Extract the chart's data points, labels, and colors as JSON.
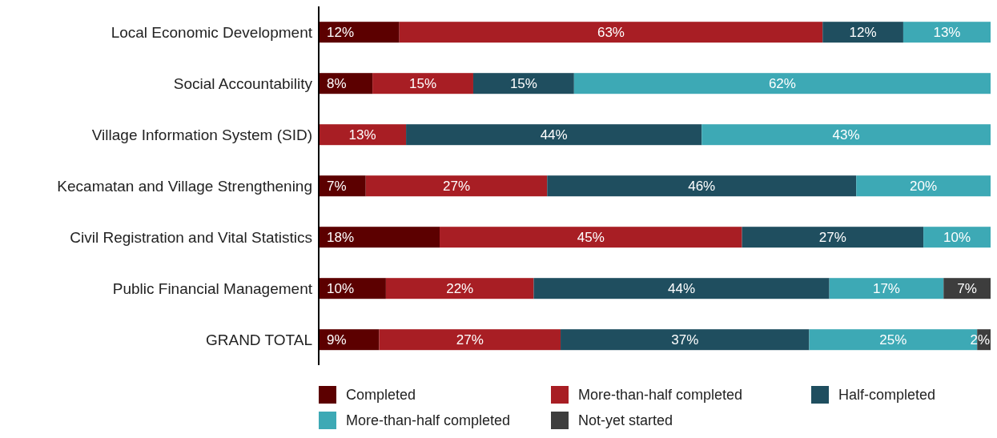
{
  "chart_data": {
    "type": "bar",
    "orientation": "horizontal",
    "stacked": true,
    "categories": [
      "Local Economic Development",
      "Social Accountability",
      "Village Information System (SID)",
      "Kecamatan and Village Strengthening",
      "Civil Registration and Vital Statistics",
      "Public Financial Management",
      "GRAND TOTAL"
    ],
    "series": [
      {
        "name": "Completed",
        "color": "#5c0000",
        "values": [
          12,
          8,
          null,
          7,
          18,
          10,
          9
        ],
        "value_labels": [
          "12%",
          "8%",
          null,
          "7%",
          "18%",
          "10%",
          "9%"
        ]
      },
      {
        "name": "More-than-half completed",
        "color": "#a81e24",
        "values": [
          63,
          15,
          13,
          27,
          45,
          22,
          27
        ],
        "value_labels": [
          "63%",
          "15%",
          "13%",
          "27%",
          "45%",
          "22%",
          "27%"
        ]
      },
      {
        "name": "Half-completed",
        "color": "#1f4e5f",
        "values": [
          12,
          15,
          44,
          46,
          27,
          44,
          37
        ],
        "value_labels": [
          "12%",
          "15%",
          "44%",
          "46%",
          "27%",
          "44%",
          "37%"
        ]
      },
      {
        "name": "More-than-half completed",
        "color": "#3da9b5",
        "values": [
          13,
          62,
          43,
          20,
          10,
          17,
          25
        ],
        "value_labels": [
          "13%",
          "62%",
          "43%",
          "20%",
          "10%",
          "17%",
          "25%"
        ]
      },
      {
        "name": "Not-yet started",
        "color": "#3d3d3d",
        "values": [
          null,
          null,
          null,
          null,
          null,
          7,
          2
        ],
        "value_labels": [
          null,
          null,
          null,
          null,
          null,
          "7%",
          "2%"
        ]
      }
    ],
    "xlim": [
      0,
      100
    ],
    "tick_labels": "y",
    "legend": "bottom"
  }
}
